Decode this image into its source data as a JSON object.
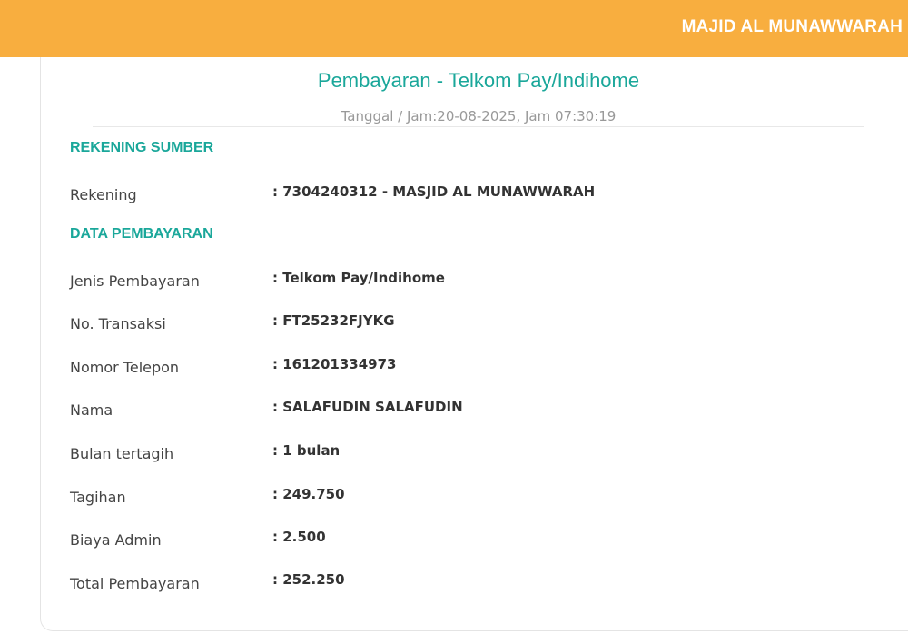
{
  "header": {
    "account_name": "MAJID AL MUNAWWARAH",
    "color": "#f8ae3f"
  },
  "receipt": {
    "title": "Pembayaran - Telkom Pay/Indihome",
    "datetime": "Tanggal / Jam:20-08-2025, Jam 07:30:19",
    "accent_color": "#1aa79a",
    "source_section": {
      "heading": "REKENING SUMBER",
      "rows": [
        {
          "label": "Rekening",
          "value": ": 7304240312 - MASJID AL MUNAWWARAH"
        }
      ]
    },
    "payment_section": {
      "heading": "DATA PEMBAYARAN",
      "rows": [
        {
          "label": "Jenis Pembayaran",
          "value": ": Telkom Pay/Indihome"
        },
        {
          "label": "No. Transaksi",
          "value": ": FT25232FJYKG"
        },
        {
          "label": "Nomor Telepon",
          "value": ": 161201334973"
        },
        {
          "label": "Nama",
          "value": ": SALAFUDIN SALAFUDIN"
        },
        {
          "label": "Bulan tertagih",
          "value": ": 1 bulan"
        },
        {
          "label": "Tagihan",
          "value": ": 249.750"
        },
        {
          "label": "Biaya Admin",
          "value": ": 2.500"
        },
        {
          "label": "Total Pembayaran",
          "value": ": 252.250"
        }
      ]
    }
  }
}
